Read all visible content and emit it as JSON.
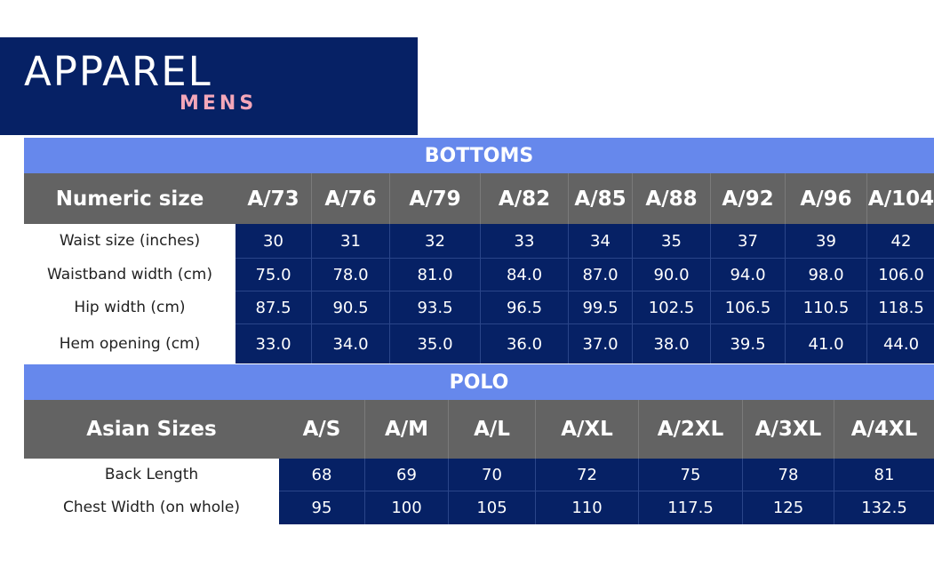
{
  "brand": {
    "title": "APPAREL",
    "subtitle": "MENS"
  },
  "colors": {
    "navy": "#062165",
    "accent": "#6688ec",
    "header": "#636363",
    "pink": "#f4a7b9"
  },
  "bottoms": {
    "title": "BOTTOMS",
    "header_label": "Numeric size",
    "sizes": [
      "A/73",
      "A/76",
      "A/79",
      "A/82",
      "A/85",
      "A/88",
      "A/92",
      "A/96",
      "A/104"
    ],
    "rows": [
      {
        "label": "Waist size (inches)",
        "values": [
          "30",
          "31",
          "32",
          "33",
          "34",
          "35",
          "37",
          "39",
          "42"
        ]
      },
      {
        "label": "Waistband width (cm)",
        "values": [
          "75.0",
          "78.0",
          "81.0",
          "84.0",
          "87.0",
          "90.0",
          "94.0",
          "98.0",
          "106.0"
        ]
      },
      {
        "label": "Hip width (cm)",
        "values": [
          "87.5",
          "90.5",
          "93.5",
          "96.5",
          "99.5",
          "102.5",
          "106.5",
          "110.5",
          "118.5"
        ]
      },
      {
        "label": "Hem opening (cm)",
        "values": [
          "33.0",
          "34.0",
          "35.0",
          "36.0",
          "37.0",
          "38.0",
          "39.5",
          "41.0",
          "44.0"
        ]
      }
    ]
  },
  "polo": {
    "title": "POLO",
    "header_label": "Asian Sizes",
    "sizes": [
      "A/S",
      "A/M",
      "A/L",
      "A/XL",
      "A/2XL",
      "A/3XL",
      "A/4XL"
    ],
    "rows": [
      {
        "label": "Back Length",
        "values": [
          "68",
          "69",
          "70",
          "72",
          "75",
          "78",
          "81"
        ]
      },
      {
        "label": "Chest Width (on whole)",
        "values": [
          "95",
          "100",
          "105",
          "110",
          "117.5",
          "125",
          "132.5"
        ]
      }
    ]
  }
}
